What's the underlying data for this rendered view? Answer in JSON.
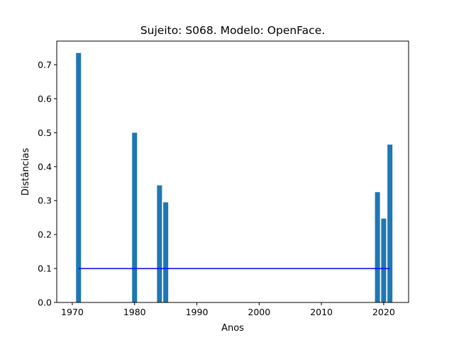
{
  "chart_data": {
    "type": "bar",
    "title": "Sujeito: S068. Modelo: OpenFace.",
    "xlabel": "Anos",
    "ylabel": "Distâncias",
    "xlim": [
      1967.5,
      2024.0
    ],
    "ylim": [
      0.0,
      0.77
    ],
    "xticks": [
      1970,
      1980,
      1990,
      2000,
      2010,
      2020
    ],
    "yticks": [
      0.0,
      0.1,
      0.2,
      0.3,
      0.4,
      0.5,
      0.6,
      0.7
    ],
    "grid": false,
    "bar_width": 0.8,
    "bar_color": "#1f77b4",
    "series": [
      {
        "x": [
          1971,
          1980,
          1984,
          1985,
          2019,
          2020,
          2021
        ],
        "values": [
          0.735,
          0.5,
          0.345,
          0.295,
          0.325,
          0.247,
          0.465
        ]
      }
    ],
    "reference_line": {
      "y": 0.1,
      "x_range": [
        1971,
        2021
      ],
      "color": "#0000ff"
    }
  }
}
